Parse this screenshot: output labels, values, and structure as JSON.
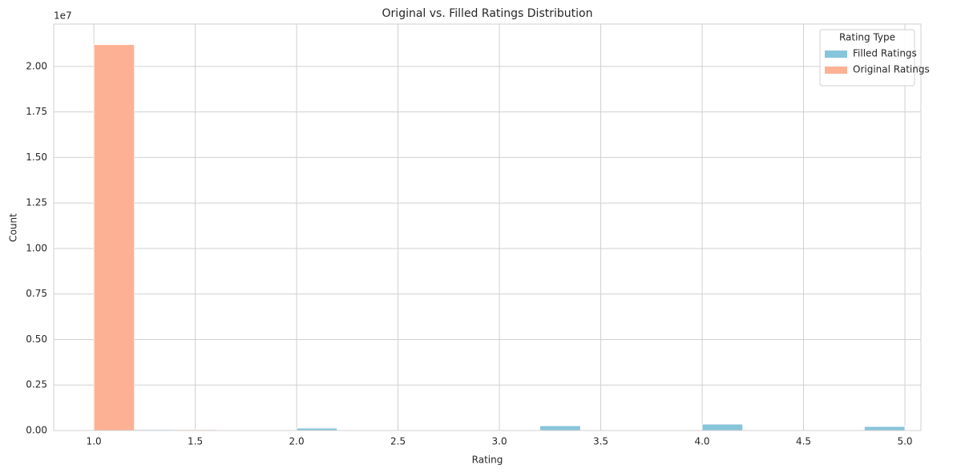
{
  "chart_data": {
    "type": "histogram",
    "title": "Original vs. Filled Ratings Distribution",
    "x_label": "Rating",
    "y_label": "Count",
    "y_offset_label": "1e7",
    "bins": [
      1.0,
      1.2,
      1.4,
      1.6,
      1.8,
      2.0,
      2.2,
      2.4,
      2.6,
      2.8,
      3.0,
      3.2,
      3.4,
      3.6,
      3.8,
      4.0,
      4.2,
      4.4,
      4.6,
      4.8,
      5.0
    ],
    "series": [
      {
        "name": "Filled Ratings",
        "color": "#87c5da",
        "values": [
          0,
          50000,
          0,
          0,
          0,
          130000,
          0,
          0,
          0,
          0,
          0,
          260000,
          0,
          0,
          0,
          350000,
          0,
          0,
          0,
          220000
        ]
      },
      {
        "name": "Original Ratings",
        "color": "#fdb194",
        "values": [
          21200000,
          0,
          50000,
          0,
          0,
          0,
          0,
          0,
          0,
          0,
          0,
          0,
          0,
          0,
          0,
          0,
          0,
          0,
          0,
          0
        ]
      }
    ],
    "xlim": [
      0.802,
      5.079
    ],
    "xticks": [
      {
        "value": 1,
        "label": "1.0"
      },
      1.5,
      {
        "value": 2,
        "label": "2.0"
      },
      2.5,
      {
        "value": 3,
        "label": "3.0"
      },
      3.5,
      {
        "value": 4,
        "label": "4.0"
      },
      4.5,
      {
        "value": 5,
        "label": "5.0"
      }
    ],
    "ylim": [
      0,
      22330000
    ],
    "yticks": [
      {
        "value": 0,
        "label": "0.00"
      },
      {
        "value": 2500000,
        "label": "0.25"
      },
      {
        "value": 5000000,
        "label": "0.50"
      },
      {
        "value": 7500000,
        "label": "0.75"
      },
      {
        "value": 10000000,
        "label": "1.00"
      },
      {
        "value": 12500000,
        "label": "1.25"
      },
      {
        "value": 15000000,
        "label": "1.50"
      },
      {
        "value": 17500000,
        "label": "1.75"
      },
      {
        "value": 20000000,
        "label": "2.00"
      }
    ],
    "grid": true,
    "legend_title": "Rating Type",
    "legend_loc": "upper right"
  }
}
